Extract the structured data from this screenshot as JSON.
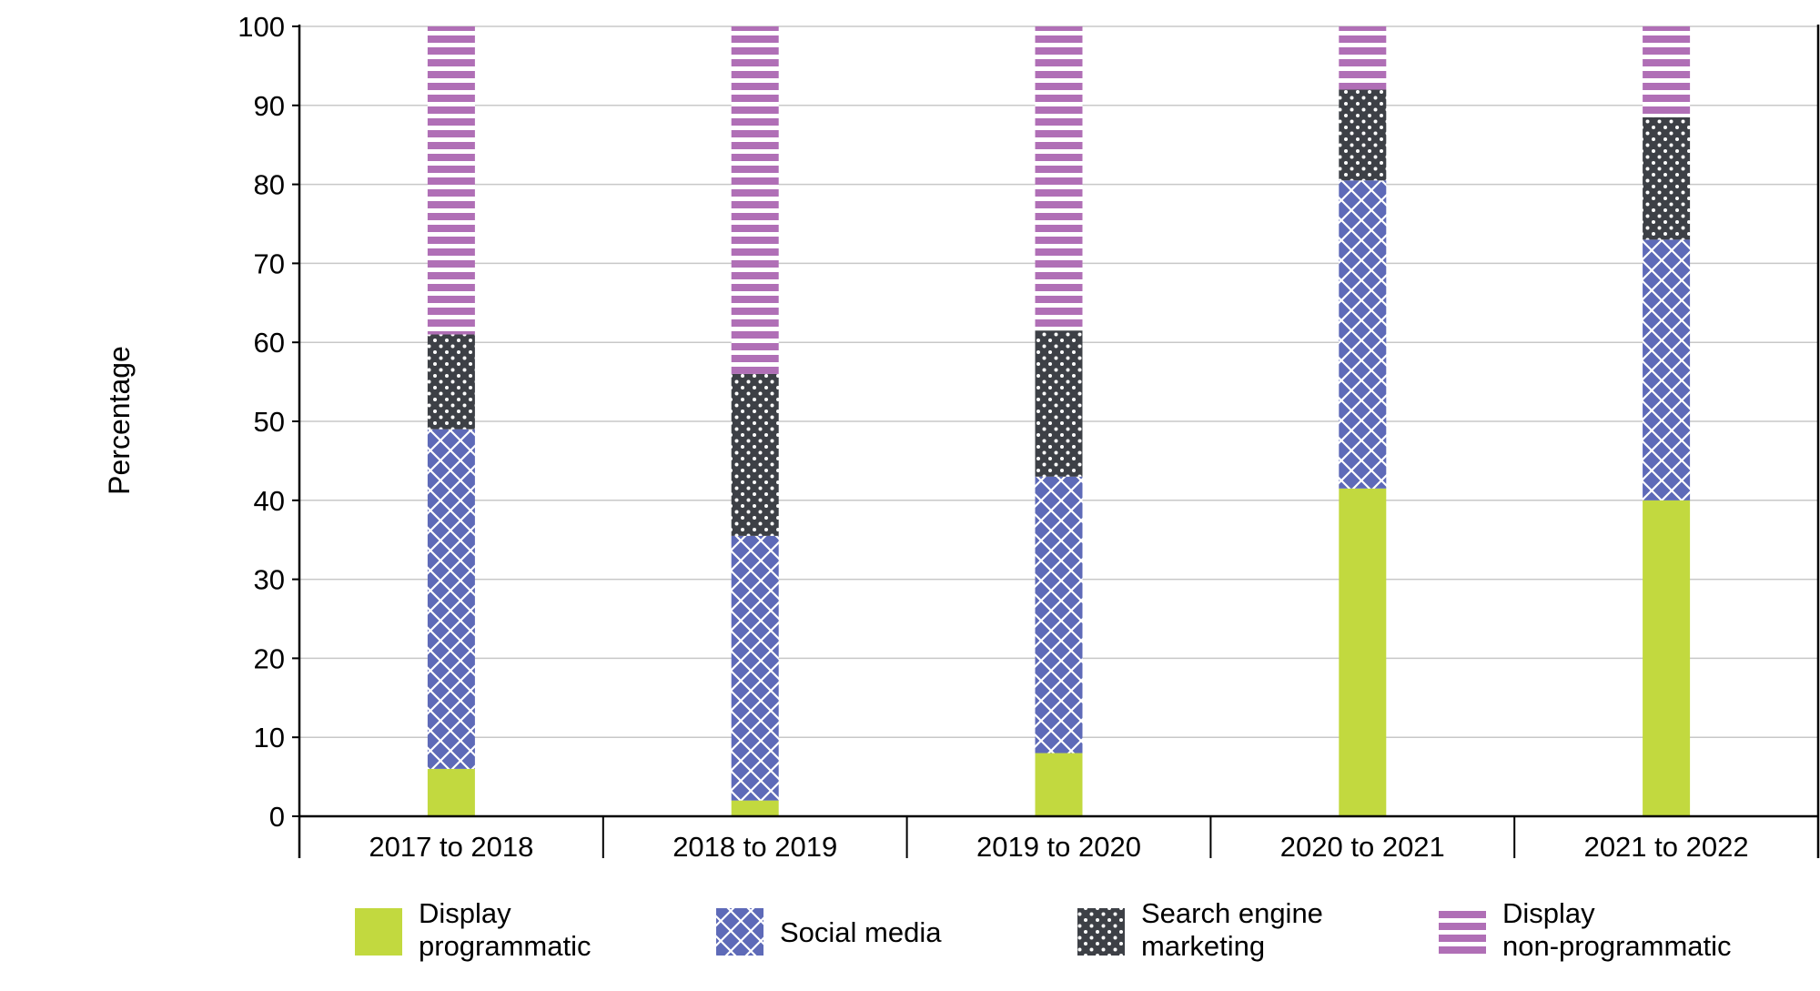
{
  "chart_data": {
    "type": "bar",
    "stacked": true,
    "categories": [
      "2017 to 2018",
      "2018 to 2019",
      "2019 to 2020",
      "2020 to 2021",
      "2021 to 2022"
    ],
    "series": [
      {
        "name": "Display programmatic",
        "legend_lines": [
          "Display",
          "programmatic"
        ],
        "color": "#c2d93f",
        "pattern": "solid",
        "values": [
          6,
          2,
          8,
          41.5,
          40
        ]
      },
      {
        "name": "Social media",
        "legend_lines": [
          "Social media"
        ],
        "color": "#5e6ab8",
        "pattern": "crosshatch",
        "values": [
          43,
          33.5,
          35,
          39,
          33
        ]
      },
      {
        "name": "Search engine marketing",
        "legend_lines": [
          "Search engine",
          "marketing"
        ],
        "color": "#3d4046",
        "pattern": "dots",
        "values": [
          12,
          20.5,
          18.5,
          11.5,
          15.5
        ]
      },
      {
        "name": "Display non-programmatic",
        "legend_lines": [
          "Display",
          "non-programmatic"
        ],
        "color": "#b06fb6",
        "pattern": "stripes",
        "values": [
          39,
          44,
          38.5,
          8,
          11.5
        ]
      }
    ],
    "xlabel": "",
    "ylabel": "Percentage",
    "ylim": [
      0,
      100
    ],
    "yticks": [
      0,
      10,
      20,
      30,
      40,
      50,
      60,
      70,
      80,
      90,
      100
    ],
    "grid": true,
    "legend_position": "bottom"
  }
}
